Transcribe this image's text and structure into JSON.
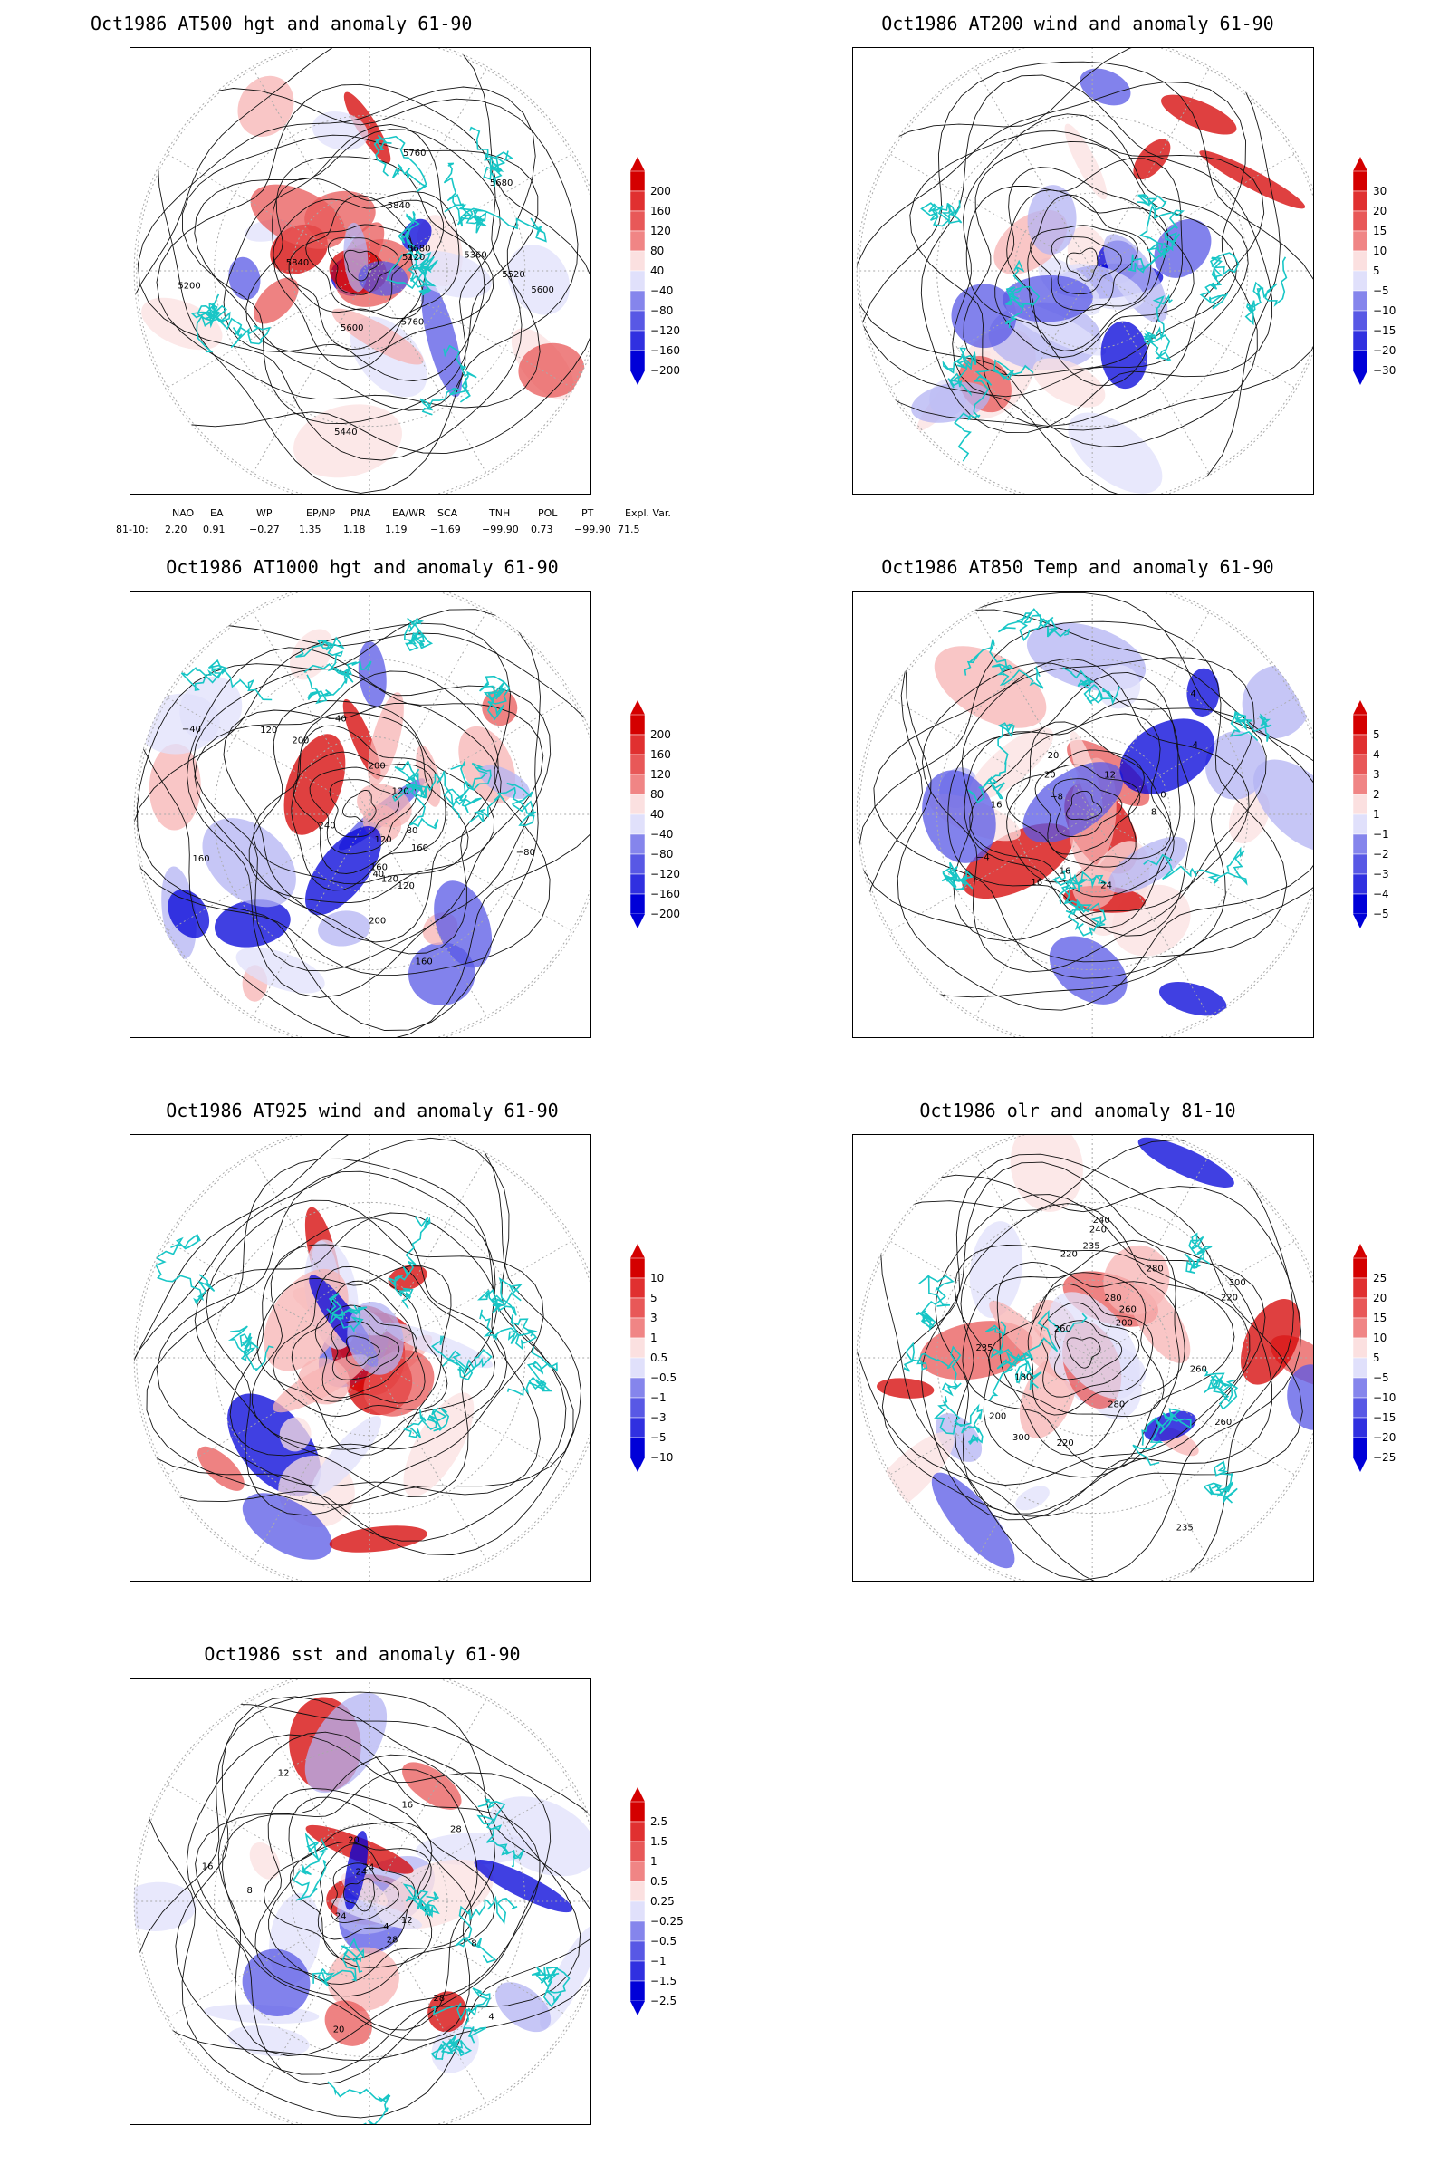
{
  "palette": {
    "coast": "#18c6c6",
    "contour": "#111111",
    "grid": "#aaaaaa",
    "red": [
      "#fbe0e0",
      "#f7b3b3",
      "#f08585",
      "#e85858",
      "#e03030",
      "#d40000"
    ],
    "blue": [
      "#e0e0fb",
      "#b3b3f3",
      "#8585ec",
      "#5858e5",
      "#3030e0",
      "#0000d8"
    ]
  },
  "panels": [
    {
      "id": "p500",
      "title": "Oct1986 AT500 hgt and anomaly 61-90",
      "labels": [
        "5840",
        "5680",
        "5600",
        "5520",
        "5440",
        "5760",
        "5120",
        "5200",
        "5360",
        "5600",
        "5680",
        "5760",
        "5840"
      ],
      "colorbar": [
        "200",
        "160",
        "120",
        "80",
        "40",
        "−40",
        "−80",
        "−120",
        "−160",
        "−200"
      ]
    },
    {
      "id": "p200",
      "title": "Oct1986 AT200 wind and anomaly 61-90",
      "labels": [],
      "colorbar": [
        "30",
        "20",
        "15",
        "10",
        "5",
        "−5",
        "−10",
        "−15",
        "−20",
        "−30"
      ]
    },
    {
      "id": "p1000",
      "title": "Oct1986 AT1000 hgt and anomaly 61-90",
      "labels": [
        "120",
        "160",
        "160",
        "120",
        "80",
        "40",
        "−40",
        "−80",
        "−40",
        "200",
        "240",
        "160",
        "120",
        "200",
        "160",
        "200",
        "120",
        "120"
      ],
      "colorbar": [
        "200",
        "160",
        "120",
        "80",
        "40",
        "−40",
        "−80",
        "−120",
        "−160",
        "−200"
      ]
    },
    {
      "id": "p850",
      "title": "Oct1986 AT850 Temp and anomaly 61-90",
      "labels": [
        "16",
        "12",
        "8",
        "4",
        "0",
        "−4",
        "−8",
        "16",
        "4",
        "20",
        "24",
        "20",
        "16"
      ],
      "colorbar": [
        "5",
        "4",
        "3",
        "2",
        "1",
        "−1",
        "−2",
        "−3",
        "−4",
        "−5"
      ]
    },
    {
      "id": "p925",
      "title": "Oct1986 AT925 wind and anomaly 61-90",
      "labels": [],
      "colorbar": [
        "10",
        "5",
        "3",
        "1",
        "0.5",
        "−0.5",
        "−1",
        "−3",
        "−5",
        "−10"
      ]
    },
    {
      "id": "polr",
      "title": "Oct1986 olr and anomaly 81-10",
      "labels": [
        "220",
        "260",
        "280",
        "235",
        "240",
        "260",
        "220",
        "200",
        "180",
        "200",
        "240",
        "300",
        "280",
        "235",
        "260",
        "220",
        "235",
        "280",
        "260",
        "300"
      ],
      "colorbar": [
        "25",
        "20",
        "15",
        "10",
        "5",
        "−5",
        "−10",
        "−15",
        "−20",
        "−25"
      ]
    },
    {
      "id": "psst",
      "title": "Oct1986 sst and anomaly 61-90",
      "labels": [
        "28",
        "24",
        "20",
        "16",
        "12",
        "8",
        "4",
        "28",
        "24",
        "20",
        "16",
        "12",
        "8",
        "4",
        "24",
        "28"
      ],
      "colorbar": [
        "2.5",
        "1.5",
        "1",
        "0.5",
        "0.25",
        "−0.25",
        "−0.5",
        "−1",
        "−1.5",
        "−2.5"
      ]
    }
  ],
  "indices": {
    "headers": [
      "NAO",
      "EA",
      "WP",
      "EP/NP",
      "PNA",
      "EA/WR",
      "SCA",
      "TNH",
      "POL",
      "PT",
      "Expl. Var."
    ],
    "row_label": "81-10:",
    "values": [
      "2.20",
      "0.91",
      "−0.27",
      "1.35",
      "1.18",
      "1.19",
      "−1.69",
      "−99.90",
      "0.73",
      "−99.90",
      "71.5"
    ]
  }
}
